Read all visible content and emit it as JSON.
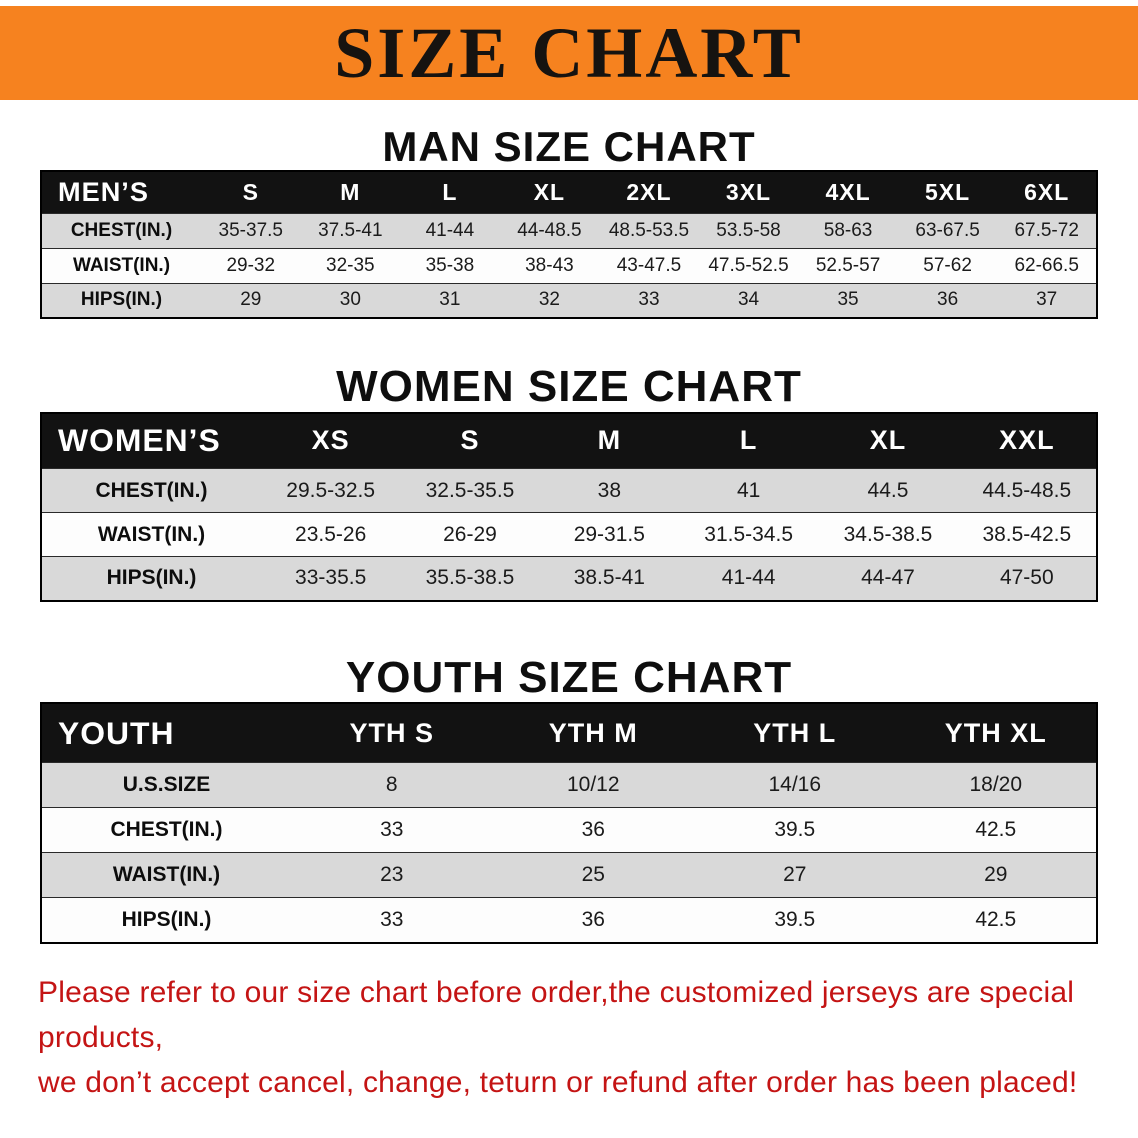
{
  "banner": {
    "title": "SIZE CHART",
    "bg_color": "#F6821F"
  },
  "sections": [
    {
      "heading": "MAN SIZE CHART",
      "table": {
        "header_label": "MEN’S",
        "columns": [
          "S",
          "M",
          "L",
          "XL",
          "2XL",
          "3XL",
          "4XL",
          "5XL",
          "6XL"
        ],
        "rows": [
          {
            "label": "CHEST(IN.)",
            "values": [
              "35-37.5",
              "37.5-41",
              "41-44",
              "44-48.5",
              "48.5-53.5",
              "53.5-58",
              "58-63",
              "63-67.5",
              "67.5-72"
            ]
          },
          {
            "label": "WAIST(IN.)",
            "values": [
              "29-32",
              "32-35",
              "35-38",
              "38-43",
              "43-47.5",
              "47.5-52.5",
              "52.5-57",
              "57-62",
              "62-66.5"
            ]
          },
          {
            "label": "HIPS(IN.)",
            "values": [
              "29",
              "30",
              "31",
              "32",
              "33",
              "34",
              "35",
              "36",
              "37"
            ]
          }
        ]
      }
    },
    {
      "heading": "WOMEN SIZE CHART",
      "table": {
        "header_label": "WOMEN’S",
        "columns": [
          "XS",
          "S",
          "M",
          "L",
          "XL",
          "XXL"
        ],
        "rows": [
          {
            "label": "CHEST(IN.)",
            "values": [
              "29.5-32.5",
              "32.5-35.5",
              "38",
              "41",
              "44.5",
              "44.5-48.5"
            ]
          },
          {
            "label": "WAIST(IN.)",
            "values": [
              "23.5-26",
              "26-29",
              "29-31.5",
              "31.5-34.5",
              "34.5-38.5",
              "38.5-42.5"
            ]
          },
          {
            "label": "HIPS(IN.)",
            "values": [
              "33-35.5",
              "35.5-38.5",
              "38.5-41",
              "41-44",
              "44-47",
              "47-50"
            ]
          }
        ]
      }
    },
    {
      "heading": "YOUTH SIZE CHART",
      "table": {
        "header_label": "YOUTH",
        "columns": [
          "YTH S",
          "YTH M",
          "YTH L",
          "YTH XL"
        ],
        "rows": [
          {
            "label": "U.S.SIZE",
            "values": [
              "8",
              "10/12",
              "14/16",
              "18/20"
            ]
          },
          {
            "label": "CHEST(IN.)",
            "values": [
              "33",
              "36",
              "39.5",
              "42.5"
            ]
          },
          {
            "label": "WAIST(IN.)",
            "values": [
              "23",
              "25",
              "27",
              "29"
            ]
          },
          {
            "label": "HIPS(IN.)",
            "values": [
              "33",
              "36",
              "39.5",
              "42.5"
            ]
          }
        ]
      }
    }
  ],
  "footer": {
    "line1": "Please refer to our size chart before order,the customized jerseys are special products,",
    "line2": "we don’t accept cancel, change, teturn or refund after order has been placed!",
    "text_color": "#C41414"
  }
}
